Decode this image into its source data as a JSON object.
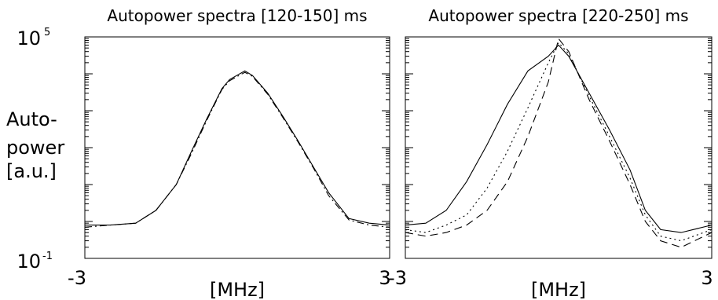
{
  "ylabel_lines": [
    "Auto-",
    "power",
    "[a.u.]"
  ],
  "chart_data": [
    {
      "type": "line",
      "title": "Autopower spectra [120-150] ms",
      "xlabel": "[MHz]",
      "xlim": [
        -3,
        3
      ],
      "x_ticklabels": [
        "-3",
        "3"
      ],
      "ylim": [
        0.1,
        100000
      ],
      "yscale": "log",
      "y_ticklabels": [
        {
          "base": "10",
          "exp": "5"
        },
        {
          "base": "10",
          "exp": "-1"
        }
      ],
      "series": [
        {
          "style": "solid",
          "x": [
            -3,
            -2.5,
            -2.0,
            -1.6,
            -1.2,
            -0.9,
            -0.6,
            -0.3,
            -0.15,
            0.15,
            0.3,
            0.6,
            0.9,
            1.2,
            1.5,
            1.8,
            2.2,
            2.6,
            3
          ],
          "y": [
            0.8,
            0.8,
            0.9,
            2,
            10,
            80,
            600,
            4000,
            7000,
            12000,
            9000,
            3000,
            700,
            150,
            30,
            6,
            1.2,
            0.9,
            0.8
          ]
        },
        {
          "style": "dashdot",
          "x": [
            -3,
            -2.5,
            -2.0,
            -1.6,
            -1.2,
            -0.9,
            -0.6,
            -0.3,
            -0.15,
            0.15,
            0.3,
            0.6,
            0.9,
            1.2,
            1.5,
            1.8,
            2.2,
            2.6,
            3
          ],
          "y": [
            0.7,
            0.8,
            0.9,
            2,
            10,
            70,
            550,
            3800,
            6500,
            11000,
            8500,
            2800,
            650,
            140,
            28,
            5,
            1.1,
            0.8,
            0.7
          ]
        }
      ]
    },
    {
      "type": "line",
      "title": "Autopower spectra [220-250] ms",
      "xlabel": "[MHz]",
      "xlim": [
        -3,
        3
      ],
      "x_ticklabels": [
        "-3",
        "3"
      ],
      "ylim": [
        0.1,
        100000
      ],
      "yscale": "log",
      "series": [
        {
          "style": "solid",
          "x": [
            -3,
            -2.6,
            -2.2,
            -1.8,
            -1.4,
            -1.0,
            -0.6,
            -0.2,
            0.0,
            0.2,
            0.6,
            1.0,
            1.4,
            1.7,
            2.0,
            2.4,
            3
          ],
          "y": [
            0.8,
            0.9,
            2,
            12,
            120,
            1500,
            12000,
            30000,
            60000,
            30000,
            3000,
            300,
            25,
            2,
            0.6,
            0.5,
            0.8
          ]
        },
        {
          "style": "dotted",
          "x": [
            -3,
            -2.6,
            -2.2,
            -1.8,
            -1.4,
            -1.0,
            -0.6,
            -0.2,
            0.0,
            0.2,
            0.6,
            1.0,
            1.4,
            1.7,
            2.0,
            2.4,
            3
          ],
          "y": [
            0.6,
            0.5,
            0.8,
            1.5,
            8,
            80,
            1200,
            20000,
            70000,
            35000,
            2500,
            200,
            15,
            1.5,
            0.4,
            0.3,
            0.6
          ]
        },
        {
          "style": "dashed",
          "x": [
            -3,
            -2.6,
            -2.2,
            -1.8,
            -1.4,
            -1.0,
            -0.6,
            -0.2,
            0.0,
            0.2,
            0.6,
            1.0,
            1.4,
            1.7,
            2.0,
            2.4,
            3
          ],
          "y": [
            0.5,
            0.4,
            0.5,
            0.8,
            2,
            12,
            200,
            6000,
            90000,
            40000,
            2000,
            150,
            10,
            1,
            0.3,
            0.2,
            0.5
          ]
        }
      ]
    }
  ]
}
